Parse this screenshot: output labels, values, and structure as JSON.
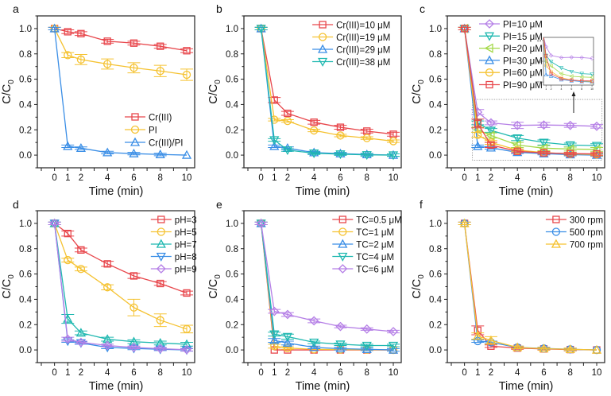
{
  "figure": {
    "panel_labels": [
      "a",
      "b",
      "c",
      "d",
      "e",
      "f"
    ]
  },
  "chart_data": [
    {
      "panel": "a",
      "type": "line",
      "title": "",
      "xlabel": "Time (min)",
      "ylabel": "C/C0",
      "xlim": [
        -1.3,
        10.6
      ],
      "ylim": [
        -0.1,
        1.1
      ],
      "xticks": [
        0,
        1,
        2,
        4,
        6,
        8,
        10
      ],
      "yticks": [
        0.0,
        0.2,
        0.4,
        0.6,
        0.8,
        1.0
      ],
      "ytick_labels": [
        "0.0",
        "0.2",
        "0.4",
        "0.6",
        "0.8",
        "1.0"
      ],
      "legend_position": "bottom-right",
      "x": [
        0,
        1,
        2,
        4,
        6,
        8,
        10
      ],
      "series": [
        {
          "name": "Cr(III)",
          "color": "#e8474c",
          "marker": "square",
          "values": [
            1.0,
            0.975,
            0.96,
            0.9,
            0.885,
            0.86,
            0.825
          ],
          "errors": [
            0.01,
            0.015,
            0.015,
            0.015,
            0.015,
            0.015,
            0.015
          ]
        },
        {
          "name": "PI",
          "color": "#f5c231",
          "marker": "circle",
          "values": [
            1.0,
            0.79,
            0.755,
            0.72,
            0.69,
            0.665,
            0.635
          ],
          "errors": [
            0.01,
            0.02,
            0.04,
            0.04,
            0.04,
            0.045,
            0.045
          ]
        },
        {
          "name": "Cr(III)/PI",
          "color": "#3a8ee6",
          "marker": "triangle-up",
          "values": [
            1.0,
            0.07,
            0.055,
            0.02,
            0.012,
            0.005,
            0.0
          ],
          "errors": [
            0.01,
            0.01,
            0.01,
            0.01,
            0.01,
            0.01,
            0.005
          ]
        }
      ]
    },
    {
      "panel": "b",
      "type": "line",
      "title": "",
      "xlabel": "Time (min)",
      "ylabel": "C/C0",
      "xlim": [
        -1.3,
        10.6
      ],
      "ylim": [
        -0.1,
        1.1
      ],
      "xticks": [
        0,
        1,
        2,
        4,
        6,
        8,
        10
      ],
      "yticks": [
        0.0,
        0.2,
        0.4,
        0.6,
        0.8,
        1.0
      ],
      "ytick_labels": [
        "0.0",
        "0.2",
        "0.4",
        "0.6",
        "0.8",
        "1.0"
      ],
      "legend_position": "top-right",
      "x": [
        0,
        1,
        2,
        4,
        6,
        8,
        10
      ],
      "series": [
        {
          "name": "Cr(III)=10 μM",
          "color": "#e8474c",
          "marker": "square",
          "values": [
            1.0,
            0.435,
            0.33,
            0.26,
            0.22,
            0.19,
            0.165
          ],
          "errors": [
            0.01,
            0.02,
            0.015,
            0.015,
            0.015,
            0.015,
            0.015
          ]
        },
        {
          "name": "Cr(III)=19 μM",
          "color": "#f5c231",
          "marker": "circle",
          "values": [
            1.0,
            0.28,
            0.27,
            0.195,
            0.155,
            0.135,
            0.11
          ],
          "errors": [
            0.01,
            0.01,
            0.01,
            0.01,
            0.01,
            0.01,
            0.01
          ]
        },
        {
          "name": "Cr(III)=29 μM",
          "color": "#3a8ee6",
          "marker": "triangle-up",
          "values": [
            1.0,
            0.07,
            0.055,
            0.02,
            0.012,
            0.005,
            0.0
          ],
          "errors": [
            0.01,
            0.01,
            0.01,
            0.01,
            0.01,
            0.01,
            0.01
          ]
        },
        {
          "name": "Cr(III)=38 μM",
          "color": "#1fb8b0",
          "marker": "triangle-down",
          "values": [
            1.0,
            0.12,
            0.04,
            0.015,
            0.008,
            0.002,
            0.0
          ],
          "errors": [
            0.01,
            0.01,
            0.01,
            0.01,
            0.01,
            0.01,
            0.01
          ]
        }
      ]
    },
    {
      "panel": "c",
      "type": "line",
      "title": "",
      "xlabel": "Time (min)",
      "ylabel": "C/C0",
      "xlim": [
        -1.3,
        10.6
      ],
      "ylim": [
        -0.1,
        1.1
      ],
      "xticks": [
        0,
        1,
        2,
        4,
        6,
        8,
        10
      ],
      "yticks": [
        0.0,
        0.2,
        0.4,
        0.6,
        0.8,
        1.0
      ],
      "ytick_labels": [
        "0.0",
        "0.2",
        "0.4",
        "0.6",
        "0.8",
        "1.0"
      ],
      "legend_position": "top-center",
      "inset": {
        "description": "zoomed view of dotted region",
        "xlim": [
          0.5,
          10.3
        ],
        "ylim": [
          -0.03,
          0.43
        ],
        "yticks": [
          0.0,
          0.2,
          0.4
        ],
        "ytick_labels": [
          "0.0",
          "0.2",
          "0.4"
        ],
        "xticks": [
          1,
          2,
          4,
          6,
          8,
          10
        ]
      },
      "zoom_region": {
        "x": [
          0.6,
          10.4
        ],
        "y": [
          -0.04,
          0.44
        ]
      },
      "x": [
        0,
        1,
        2,
        4,
        6,
        8,
        10
      ],
      "series": [
        {
          "name": "PI=10 μM",
          "color": "#b57fe6",
          "marker": "diamond",
          "values": [
            1.0,
            0.34,
            0.255,
            0.235,
            0.238,
            0.235,
            0.228
          ],
          "errors": [
            0.01,
            0.02,
            0.015,
            0.025,
            0.02,
            0.015,
            0.015
          ]
        },
        {
          "name": "PI=15 μM",
          "color": "#1fb8b0",
          "marker": "triangle-down",
          "values": [
            1.0,
            0.255,
            0.195,
            0.135,
            0.1,
            0.08,
            0.075
          ],
          "errors": [
            0.01,
            0.015,
            0.015,
            0.02,
            0.02,
            0.015,
            0.015
          ]
        },
        {
          "name": "PI=20 μM",
          "color": "#a5d94a",
          "marker": "triangle-left",
          "values": [
            1.0,
            0.2,
            0.155,
            0.08,
            0.055,
            0.048,
            0.045
          ],
          "errors": [
            0.01,
            0.02,
            0.02,
            0.02,
            0.02,
            0.015,
            0.015
          ]
        },
        {
          "name": "PI=30 μM",
          "color": "#3a8ee6",
          "marker": "triangle-up",
          "values": [
            1.0,
            0.07,
            0.058,
            0.022,
            0.012,
            0.004,
            0.0
          ],
          "errors": [
            0.01,
            0.01,
            0.01,
            0.01,
            0.01,
            0.01,
            0.01
          ]
        },
        {
          "name": "PI=60 μM",
          "color": "#f5c231",
          "marker": "circle",
          "values": [
            1.0,
            0.16,
            0.1,
            0.04,
            0.02,
            0.01,
            0.005
          ],
          "errors": [
            0.01,
            0.02,
            0.015,
            0.01,
            0.01,
            0.01,
            0.01
          ]
        },
        {
          "name": "PI=90 μM",
          "color": "#e8474c",
          "marker": "square",
          "values": [
            1.0,
            0.25,
            0.08,
            0.03,
            0.018,
            0.012,
            0.01
          ],
          "errors": [
            0.01,
            0.035,
            0.02,
            0.01,
            0.01,
            0.01,
            0.01
          ]
        }
      ]
    },
    {
      "panel": "d",
      "type": "line",
      "title": "",
      "xlabel": "Time (min)",
      "ylabel": "C/C0",
      "xlim": [
        -1.3,
        10.6
      ],
      "ylim": [
        -0.1,
        1.1
      ],
      "xticks": [
        0,
        1,
        2,
        4,
        6,
        8,
        10
      ],
      "yticks": [
        0.0,
        0.2,
        0.4,
        0.6,
        0.8,
        1.0
      ],
      "ytick_labels": [
        "0.0",
        "0.2",
        "0.4",
        "0.6",
        "0.8",
        "1.0"
      ],
      "legend_position": "top-right",
      "x": [
        0,
        1,
        2,
        4,
        6,
        8,
        10
      ],
      "series": [
        {
          "name": "pH=3",
          "color": "#e8474c",
          "marker": "square",
          "values": [
            1.0,
            0.92,
            0.79,
            0.68,
            0.585,
            0.525,
            0.45
          ],
          "errors": [
            0.01,
            0.02,
            0.015,
            0.02,
            0.02,
            0.015,
            0.015
          ]
        },
        {
          "name": "pH=5",
          "color": "#f5c231",
          "marker": "circle",
          "values": [
            1.0,
            0.71,
            0.64,
            0.495,
            0.335,
            0.235,
            0.165
          ],
          "errors": [
            0.01,
            0.015,
            0.015,
            0.02,
            0.065,
            0.05,
            0.03
          ]
        },
        {
          "name": "pH=7",
          "color": "#1fb8b0",
          "marker": "triangle-up",
          "values": [
            1.0,
            0.245,
            0.135,
            0.085,
            0.065,
            0.055,
            0.045
          ],
          "errors": [
            0.01,
            0.035,
            0.015,
            0.015,
            0.015,
            0.015,
            0.015
          ]
        },
        {
          "name": "pH=8",
          "color": "#3a8ee6",
          "marker": "triangle-down",
          "values": [
            1.0,
            0.07,
            0.055,
            0.02,
            0.012,
            0.005,
            0.0
          ],
          "errors": [
            0.01,
            0.01,
            0.01,
            0.01,
            0.01,
            0.01,
            0.01
          ]
        },
        {
          "name": "pH=9",
          "color": "#b57fe6",
          "marker": "diamond",
          "values": [
            1.0,
            0.085,
            0.06,
            0.035,
            0.02,
            0.01,
            0.002
          ],
          "errors": [
            0.01,
            0.015,
            0.01,
            0.01,
            0.01,
            0.01,
            0.01
          ]
        }
      ]
    },
    {
      "panel": "e",
      "type": "line",
      "title": "",
      "xlabel": "Time (min)",
      "ylabel": "C/C0",
      "xlim": [
        -1.3,
        10.6
      ],
      "ylim": [
        -0.1,
        1.1
      ],
      "xticks": [
        0,
        1,
        2,
        4,
        6,
        8,
        10
      ],
      "yticks": [
        0.0,
        0.2,
        0.4,
        0.6,
        0.8,
        1.0
      ],
      "ytick_labels": [
        "0.0",
        "0.2",
        "0.4",
        "0.6",
        "0.8",
        "1.0"
      ],
      "legend_position": "top-right",
      "x": [
        0,
        1,
        2,
        4,
        6,
        8,
        10
      ],
      "series": [
        {
          "name": "TC=0.5 μM",
          "color": "#e8474c",
          "marker": "square",
          "values": [
            1.0,
            0.0,
            0.0,
            0.0,
            0.0,
            0.0,
            0.0
          ],
          "errors": [
            0.01,
            0.005,
            0.005,
            0.005,
            0.005,
            0.005,
            0.005
          ]
        },
        {
          "name": "TC=1 μM",
          "color": "#f5c231",
          "marker": "circle",
          "values": [
            1.0,
            0.03,
            0.015,
            0.005,
            0.003,
            0.002,
            0.0
          ],
          "errors": [
            0.01,
            0.015,
            0.01,
            0.005,
            0.005,
            0.005,
            0.005
          ]
        },
        {
          "name": "TC=2 μM",
          "color": "#3a8ee6",
          "marker": "triangle-up",
          "values": [
            1.0,
            0.075,
            0.055,
            0.02,
            0.01,
            0.005,
            0.0
          ],
          "errors": [
            0.01,
            0.015,
            0.015,
            0.01,
            0.01,
            0.01,
            0.01
          ]
        },
        {
          "name": "TC=4 μM",
          "color": "#1fb8b0",
          "marker": "triangle-down",
          "values": [
            1.0,
            0.125,
            0.105,
            0.06,
            0.045,
            0.035,
            0.035
          ],
          "errors": [
            0.01,
            0.015,
            0.02,
            0.01,
            0.01,
            0.01,
            0.01
          ]
        },
        {
          "name": "TC=6 μM",
          "color": "#b57fe6",
          "marker": "diamond",
          "values": [
            1.0,
            0.305,
            0.28,
            0.23,
            0.185,
            0.165,
            0.145
          ],
          "errors": [
            0.01,
            0.015,
            0.015,
            0.015,
            0.01,
            0.01,
            0.01
          ]
        }
      ]
    },
    {
      "panel": "f",
      "type": "line",
      "title": "",
      "xlabel": "Time (min)",
      "ylabel": "C/C0",
      "xlim": [
        -1.3,
        10.6
      ],
      "ylim": [
        -0.1,
        1.1
      ],
      "xticks": [
        0,
        1,
        2,
        4,
        6,
        8,
        10
      ],
      "yticks": [
        0.0,
        0.2,
        0.4,
        0.6,
        0.8,
        1.0
      ],
      "ytick_labels": [
        "0.0",
        "0.2",
        "0.4",
        "0.6",
        "0.8",
        "1.0"
      ],
      "legend_position": "top-right",
      "x": [
        0,
        1,
        2,
        4,
        6,
        8,
        10
      ],
      "series": [
        {
          "name": "300 rpm",
          "color": "#e8474c",
          "marker": "square",
          "values": [
            1.0,
            0.155,
            0.03,
            0.015,
            0.008,
            0.003,
            0.0
          ],
          "errors": [
            0.01,
            0.035,
            0.01,
            0.01,
            0.01,
            0.01,
            0.005
          ]
        },
        {
          "name": "500 rpm",
          "color": "#3a8ee6",
          "marker": "circle",
          "values": [
            1.0,
            0.07,
            0.06,
            0.02,
            0.012,
            0.005,
            0.0
          ],
          "errors": [
            0.01,
            0.01,
            0.01,
            0.01,
            0.01,
            0.01,
            0.005
          ]
        },
        {
          "name": "700 rpm",
          "color": "#f5c231",
          "marker": "triangle-up",
          "values": [
            1.0,
            0.11,
            0.075,
            0.02,
            0.01,
            0.005,
            0.0
          ],
          "errors": [
            0.01,
            0.025,
            0.03,
            0.01,
            0.01,
            0.01,
            0.005
          ]
        }
      ]
    }
  ]
}
